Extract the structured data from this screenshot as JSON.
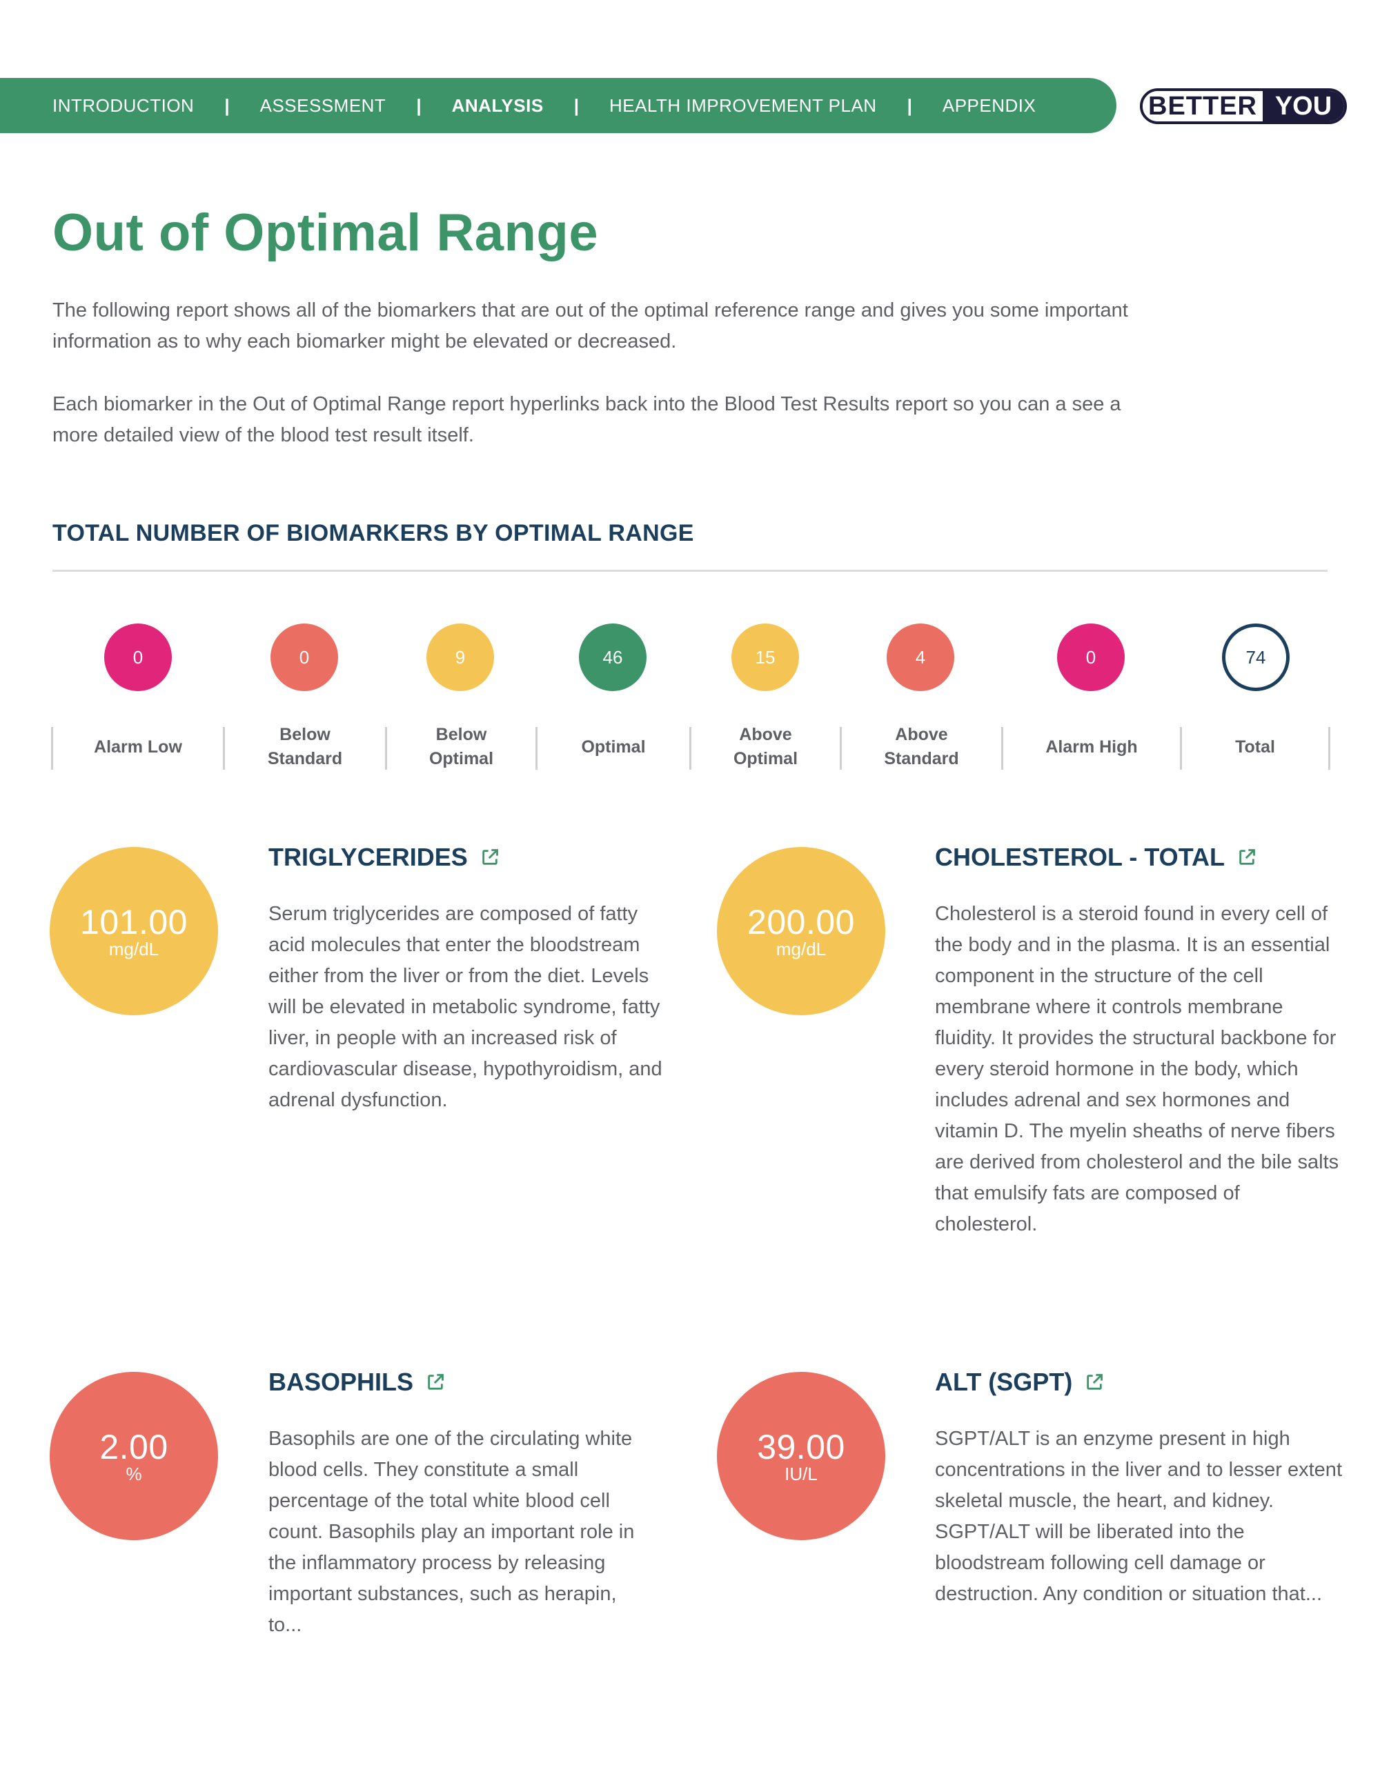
{
  "nav": {
    "items": [
      {
        "label": "INTRODUCTION",
        "active": false
      },
      {
        "label": "ASSESSMENT",
        "active": false
      },
      {
        "label": "ANALYSIS",
        "active": true
      },
      {
        "label": "HEALTH IMPROVEMENT PLAN",
        "active": false
      },
      {
        "label": "APPENDIX",
        "active": false
      }
    ],
    "separator": "|"
  },
  "logo": {
    "left_text": "BETTER",
    "right_text": "YOU"
  },
  "page": {
    "title": "Out of Optimal Range",
    "intro_1": "The following report shows all of the biomarkers that are out of the optimal reference range and gives you some important information as to why each biomarker might be elevated or decreased.",
    "intro_2": "Each biomarker in the Out of Optimal Range report hyperlinks back into the Blood Test Results report so you can a see a more detailed view of the blood test result itself."
  },
  "summary": {
    "title": "TOTAL NUMBER OF BIOMARKERS BY OPTIMAL RANGE",
    "counts": [
      {
        "label_1": "Alarm Low",
        "label_2": "",
        "value": "0",
        "color": "#e0257a"
      },
      {
        "label_1": "Below",
        "label_2": "Standard",
        "value": "0",
        "color": "#ea6e61"
      },
      {
        "label_1": "Below",
        "label_2": "Optimal",
        "value": "9",
        "color": "#f4c554"
      },
      {
        "label_1": "Optimal",
        "label_2": "",
        "value": "46",
        "color": "#3c9468"
      },
      {
        "label_1": "Above",
        "label_2": "Optimal",
        "value": "15",
        "color": "#f4c554"
      },
      {
        "label_1": "Above",
        "label_2": "Standard",
        "value": "4",
        "color": "#ea6e61"
      },
      {
        "label_1": "Alarm High",
        "label_2": "",
        "value": "0",
        "color": "#e0257a"
      },
      {
        "label_1": "Total",
        "label_2": "",
        "value": "74",
        "color": "#1a3e5c"
      }
    ]
  },
  "biomarkers": [
    {
      "name": "TRIGLYCERIDES",
      "value": "101.00",
      "unit": "mg/dL",
      "color": "#f4c554",
      "description": "Serum triglycerides are composed of fatty acid molecules that enter the bloodstream either from the liver or from the diet. Levels will be elevated in metabolic syndrome, fatty liver, in people with an increased risk of cardiovascular disease, hypothyroidism, and adrenal dysfunction."
    },
    {
      "name": "CHOLESTEROL - TOTAL",
      "value": "200.00",
      "unit": "mg/dL",
      "color": "#f4c554",
      "description": "Cholesterol is a steroid found in every cell of the body and in the plasma. It is an essential component in the structure of the cell membrane where it controls membrane fluidity. It provides the structural backbone for every steroid hormone in the body, which includes adrenal and sex hormones and vitamin D. The myelin sheaths of nerve fibers are derived from cholesterol and the bile salts that emulsify fats are composed of cholesterol."
    },
    {
      "name": "BASOPHILS",
      "value": "2.00",
      "unit": "%",
      "color": "#ea6e61",
      "description": "Basophils are one of the circulating white blood cells. They constitute a small percentage of the total white blood cell count. Basophils play an important role in the inflammatory process by releasing important substances, such as herapin, to..."
    },
    {
      "name": "ALT (SGPT)",
      "value": "39.00",
      "unit": "IU/L",
      "color": "#ea6e61",
      "description": "SGPT/ALT is an enzyme present in high concentrations in the liver and to lesser extent skeletal muscle, the heart, and kidney. SGPT/ALT will be liberated into the bloodstream following cell damage or destruction. Any condition or situation that..."
    }
  ]
}
